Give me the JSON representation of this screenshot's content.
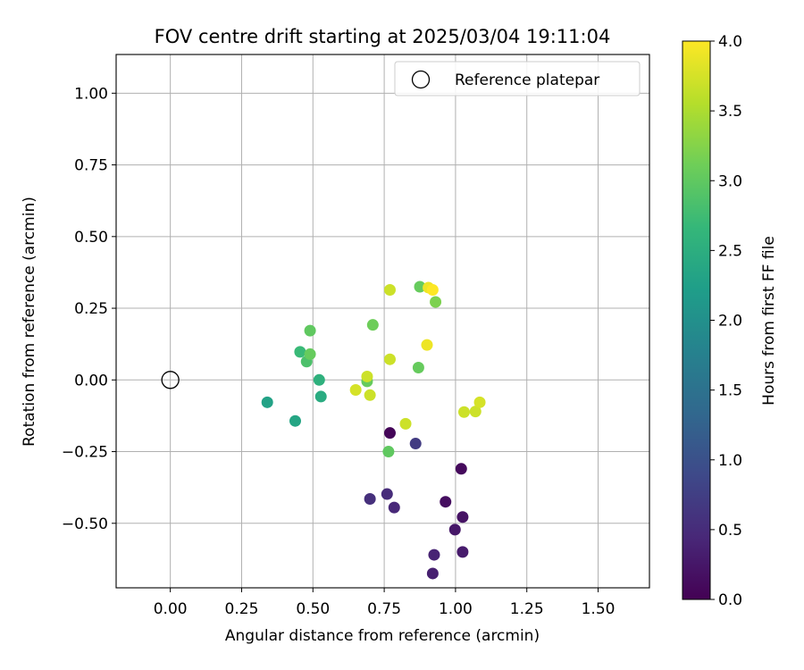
{
  "chart_data": {
    "type": "scatter",
    "title": "FOV centre drift starting at 2025/03/04 19:11:04",
    "xlabel": "Angular distance from reference (arcmin)",
    "ylabel": "Rotation from reference (arcmin)",
    "xlim": [
      -0.19,
      1.68
    ],
    "ylim": [
      -0.725,
      1.135
    ],
    "x_ticks": [
      "0.00",
      "0.25",
      "0.50",
      "0.75",
      "1.00",
      "1.25",
      "1.50"
    ],
    "x_tick_values": [
      0,
      0.25,
      0.5,
      0.75,
      1.0,
      1.25,
      1.5
    ],
    "y_ticks": [
      "−0.50",
      "−0.25",
      "0.00",
      "0.25",
      "0.50",
      "0.75",
      "1.00"
    ],
    "y_tick_values": [
      -0.5,
      -0.25,
      0,
      0.25,
      0.5,
      0.75,
      1.0
    ],
    "grid": true,
    "legend": {
      "position": "top-right",
      "entries": [
        "Reference platepar"
      ]
    },
    "reference_point": {
      "x": 0,
      "y": 0,
      "marker": "open-circle"
    },
    "colorbar": {
      "label": "Hours from first FF file",
      "range": [
        0,
        4
      ],
      "ticks": [
        "0.0",
        "0.5",
        "1.0",
        "1.5",
        "2.0",
        "2.5",
        "3.0",
        "3.5",
        "4.0"
      ],
      "tick_values": [
        0,
        0.5,
        1.0,
        1.5,
        2.0,
        2.5,
        3.0,
        3.5,
        4.0
      ],
      "colormap": [
        "#440154",
        "#482878",
        "#3e4989",
        "#31688e",
        "#26828e",
        "#1f9e89",
        "#35b779",
        "#6ece58",
        "#b5de2b",
        "#fde725"
      ]
    },
    "points": [
      {
        "x": 0.77,
        "y": -0.185,
        "c": 0.05
      },
      {
        "x": 1.02,
        "y": -0.31,
        "c": 0.1
      },
      {
        "x": 0.965,
        "y": -0.425,
        "c": 0.15
      },
      {
        "x": 1.025,
        "y": -0.478,
        "c": 0.2
      },
      {
        "x": 0.998,
        "y": -0.522,
        "c": 0.25
      },
      {
        "x": 1.025,
        "y": -0.6,
        "c": 0.3
      },
      {
        "x": 0.92,
        "y": -0.675,
        "c": 0.35
      },
      {
        "x": 0.925,
        "y": -0.61,
        "c": 0.4
      },
      {
        "x": 0.785,
        "y": -0.445,
        "c": 0.45
      },
      {
        "x": 0.76,
        "y": -0.398,
        "c": 0.5
      },
      {
        "x": 0.7,
        "y": -0.415,
        "c": 0.55
      },
      {
        "x": 0.86,
        "y": -0.222,
        "c": 0.7
      },
      {
        "x": 0.34,
        "y": -0.078,
        "c": 2.3
      },
      {
        "x": 0.438,
        "y": -0.143,
        "c": 2.35
      },
      {
        "x": 0.528,
        "y": -0.058,
        "c": 2.45
      },
      {
        "x": 0.522,
        "y": 0.0,
        "c": 2.55
      },
      {
        "x": 0.455,
        "y": 0.098,
        "c": 2.7
      },
      {
        "x": 0.478,
        "y": 0.064,
        "c": 2.85
      },
      {
        "x": 0.49,
        "y": 0.172,
        "c": 3.0
      },
      {
        "x": 0.49,
        "y": 0.09,
        "c": 3.05
      },
      {
        "x": 0.71,
        "y": 0.192,
        "c": 3.1
      },
      {
        "x": 0.69,
        "y": -0.005,
        "c": 3.05
      },
      {
        "x": 0.765,
        "y": -0.25,
        "c": 3.0
      },
      {
        "x": 0.87,
        "y": 0.043,
        "c": 3.05
      },
      {
        "x": 0.875,
        "y": 0.325,
        "c": 3.05
      },
      {
        "x": 0.93,
        "y": 0.272,
        "c": 3.2
      },
      {
        "x": 0.77,
        "y": 0.314,
        "c": 3.7
      },
      {
        "x": 0.77,
        "y": 0.072,
        "c": 3.7
      },
      {
        "x": 0.69,
        "y": 0.012,
        "c": 3.7
      },
      {
        "x": 0.7,
        "y": -0.053,
        "c": 3.7
      },
      {
        "x": 0.65,
        "y": -0.035,
        "c": 3.75
      },
      {
        "x": 0.825,
        "y": -0.153,
        "c": 3.7
      },
      {
        "x": 1.03,
        "y": -0.112,
        "c": 3.7
      },
      {
        "x": 1.07,
        "y": -0.11,
        "c": 3.7
      },
      {
        "x": 1.085,
        "y": -0.078,
        "c": 3.75
      },
      {
        "x": 0.905,
        "y": 0.322,
        "c": 3.9
      },
      {
        "x": 0.92,
        "y": 0.314,
        "c": 4.0
      },
      {
        "x": 0.9,
        "y": 0.122,
        "c": 3.9
      }
    ]
  }
}
